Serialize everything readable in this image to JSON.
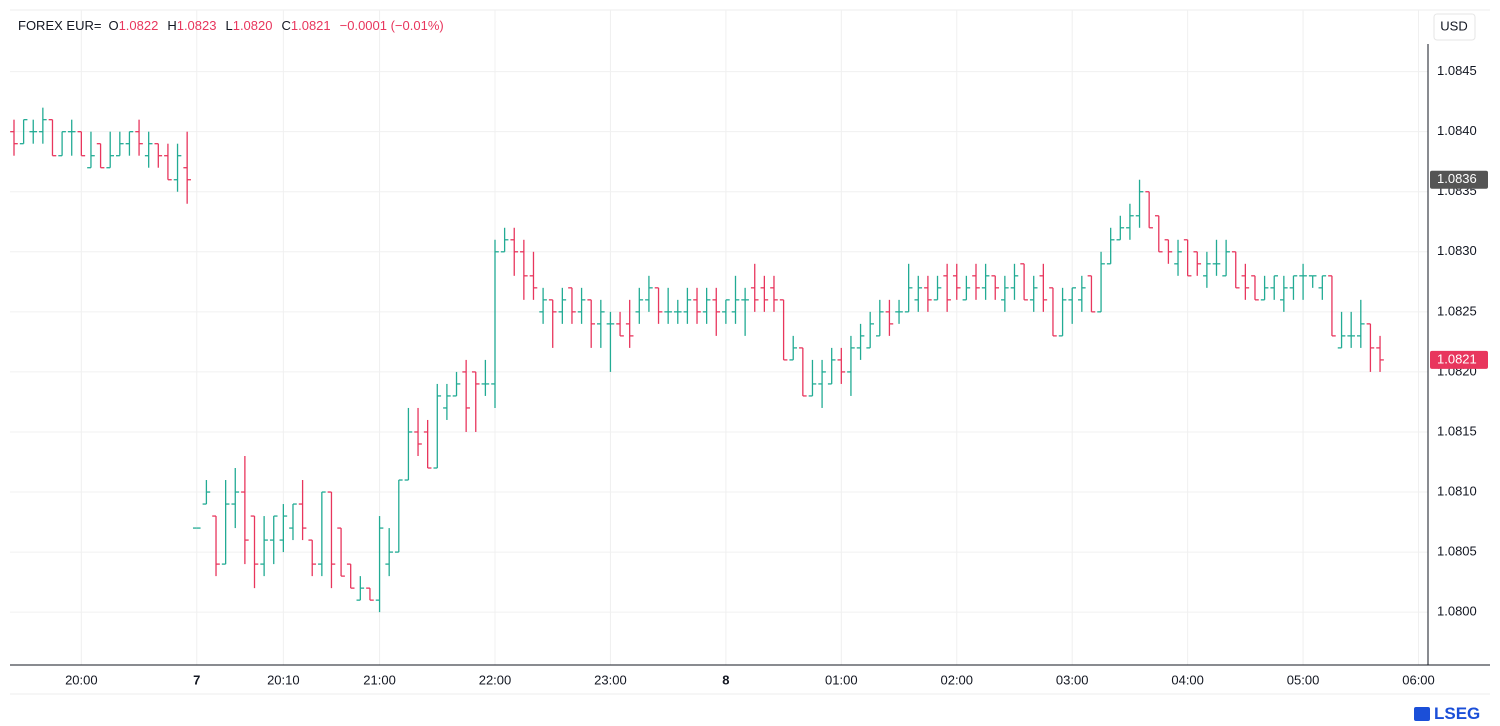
{
  "chart_data": {
    "type": "ohlc",
    "header": {
      "symbol": "FOREX EUR=",
      "fields": [
        {
          "key": "O",
          "value": "1.0822"
        },
        {
          "key": "H",
          "value": "1.0823"
        },
        {
          "key": "L",
          "value": "1.0820"
        },
        {
          "key": "C",
          "value": "1.0821"
        }
      ],
      "change": "−0.0001 (−0.01%)"
    },
    "currency": "USD",
    "source": "LSEG",
    "up_color": "#22ab94",
    "down_color": "#e8365d",
    "grid": true,
    "ylim": [
      1.07956,
      1.08473
    ],
    "yticks": [
      {
        "value": 1.08,
        "label": "1.0800"
      },
      {
        "value": 1.0805,
        "label": "1.0805"
      },
      {
        "value": 1.081,
        "label": "1.0810"
      },
      {
        "value": 1.0815,
        "label": "1.0815"
      },
      {
        "value": 1.082,
        "label": "1.0820"
      },
      {
        "value": 1.0825,
        "label": "1.0825"
      },
      {
        "value": 1.083,
        "label": "1.0830"
      },
      {
        "value": 1.0835,
        "label": "1.0835"
      },
      {
        "value": 1.084,
        "label": "1.0840"
      },
      {
        "value": 1.0845,
        "label": "1.0845"
      }
    ],
    "price_markers": [
      {
        "value": 1.0836,
        "color": "#555555"
      },
      {
        "value": 1.0821,
        "color": "#e8365d"
      }
    ],
    "categories": [
      null,
      null,
      null,
      null,
      null,
      null,
      null,
      "20:00",
      null,
      null,
      null,
      null,
      null,
      null,
      null,
      null,
      null,
      null,
      null,
      "7",
      null,
      null,
      null,
      null,
      null,
      null,
      null,
      null,
      "20:10",
      null,
      null,
      null,
      null,
      null,
      null,
      null,
      null,
      null,
      "21:00",
      null,
      null,
      null,
      null,
      null,
      null,
      null,
      null,
      null,
      null,
      null,
      "22:00",
      null,
      null,
      null,
      null,
      null,
      null,
      null,
      null,
      null,
      null,
      null,
      "23:00",
      null,
      null,
      null,
      null,
      null,
      null,
      null,
      null,
      null,
      null,
      null,
      "8",
      null,
      null,
      null,
      null,
      null,
      null,
      null,
      null,
      null,
      null,
      null,
      "01:00",
      null,
      null,
      null,
      null,
      null,
      null,
      null,
      null,
      null,
      null,
      null,
      "02:00",
      null,
      null,
      null,
      null,
      null,
      null,
      null,
      null,
      null,
      null,
      null,
      "03:00",
      null,
      null,
      null,
      null,
      null,
      null,
      null,
      null,
      null,
      null,
      null,
      "04:00",
      null,
      null,
      null,
      null,
      null,
      null,
      null,
      null,
      null,
      null,
      null,
      "05:00",
      null,
      null,
      null,
      null,
      null,
      null,
      null,
      null,
      null,
      null,
      null,
      "06:00"
    ],
    "open": [
      1.084,
      1.0839,
      1.084,
      1.084,
      1.0841,
      1.0838,
      1.084,
      1.084,
      1.0837,
      1.0839,
      1.0837,
      1.0838,
      1.0839,
      1.084,
      1.0838,
      1.0839,
      1.0838,
      1.0836,
      1.0837,
      1.0807,
      1.0809,
      1.0808,
      1.0804,
      1.0809,
      1.081,
      1.0808,
      1.0804,
      1.0806,
      1.0806,
      1.0807,
      1.0809,
      1.0806,
      1.0804,
      1.081,
      1.0807,
      1.0804,
      1.0801,
      1.0802,
      1.0801,
      1.0804,
      1.0805,
      1.0811,
      1.0815,
      1.0815,
      1.0812,
      1.0817,
      1.0818,
      1.082,
      1.082,
      1.0819,
      1.0819,
      1.083,
      1.0831,
      1.083,
      1.0828,
      1.0825,
      1.0826,
      1.0825,
      1.0827,
      1.0825,
      1.0826,
      1.0824,
      1.0824,
      1.0824,
      1.0824,
      1.0825,
      1.0826,
      1.0827,
      1.0825,
      1.0825,
      1.0825,
      1.0826,
      1.0825,
      1.0826,
      1.0825,
      1.0825,
      1.0826,
      1.0827,
      1.0827,
      1.0827,
      1.0826,
      1.0821,
      1.0822,
      1.0818,
      1.0819,
      1.0819,
      1.0821,
      1.082,
      1.0822,
      1.0822,
      1.0823,
      1.0825,
      1.0825,
      1.0825,
      1.0826,
      1.0827,
      1.0826,
      1.0828,
      1.0828,
      1.0826,
      1.0828,
      1.0827,
      1.0828,
      1.0826,
      1.0827,
      1.0829,
      1.0826,
      1.0828,
      1.0827,
      1.0823,
      1.0826,
      1.0826,
      1.0828,
      1.0825,
      1.0829,
      1.0831,
      1.0832,
      1.0833,
      1.0835,
      1.0833,
      1.0831,
      1.0829,
      1.0831,
      1.083,
      1.0828,
      1.0829,
      1.0828,
      1.083,
      1.0828,
      1.0828,
      1.0826,
      1.0827,
      1.0826,
      1.0827,
      1.0828,
      1.0828,
      1.0827,
      1.0828,
      1.0822,
      1.0823,
      1.0823,
      1.0824,
      1.0822,
      null,
      null,
      null,
      null
    ],
    "high": [
      1.0841,
      1.0841,
      1.0841,
      1.0842,
      1.0841,
      1.084,
      1.0841,
      1.084,
      1.084,
      1.0839,
      1.084,
      1.084,
      1.084,
      1.0841,
      1.084,
      1.0839,
      1.0839,
      1.0839,
      1.084,
      1.0807,
      1.0811,
      1.0808,
      1.0811,
      1.0812,
      1.0813,
      1.0808,
      1.0808,
      1.0808,
      1.0809,
      1.0809,
      1.0811,
      1.0806,
      1.081,
      1.081,
      1.0807,
      1.0804,
      1.0803,
      1.0802,
      1.0808,
      1.0807,
      1.0811,
      1.0817,
      1.0817,
      1.0816,
      1.0819,
      1.0819,
      1.082,
      1.0821,
      1.082,
      1.0821,
      1.0831,
      1.0832,
      1.0832,
      1.0831,
      1.083,
      1.0827,
      1.0826,
      1.0827,
      1.0827,
      1.0827,
      1.0826,
      1.0826,
      1.0825,
      1.0825,
      1.0826,
      1.0827,
      1.0828,
      1.0827,
      1.0827,
      1.0826,
      1.0827,
      1.0827,
      1.0827,
      1.0827,
      1.0826,
      1.0828,
      1.0827,
      1.0829,
      1.0828,
      1.0828,
      1.0826,
      1.0823,
      1.0822,
      1.0821,
      1.0821,
      1.0822,
      1.0822,
      1.0823,
      1.0824,
      1.0825,
      1.0826,
      1.0826,
      1.0826,
      1.0829,
      1.0828,
      1.0828,
      1.0828,
      1.0829,
      1.0829,
      1.0828,
      1.0829,
      1.0829,
      1.0828,
      1.0828,
      1.0829,
      1.0829,
      1.0828,
      1.0829,
      1.0827,
      1.0827,
      1.0827,
      1.0828,
      1.0828,
      1.083,
      1.0832,
      1.0833,
      1.0834,
      1.0836,
      1.0835,
      1.0833,
      1.0831,
      1.0831,
      1.0831,
      1.083,
      1.083,
      1.0831,
      1.0831,
      1.083,
      1.0829,
      1.0828,
      1.0828,
      1.0828,
      1.0828,
      1.0828,
      1.0829,
      1.0828,
      1.0828,
      1.0828,
      1.0825,
      1.0825,
      1.0826,
      1.0824,
      1.0823,
      null,
      null,
      null,
      null
    ],
    "low": [
      1.0838,
      1.0839,
      1.0839,
      1.0839,
      1.0838,
      1.0838,
      1.0838,
      1.0838,
      1.0837,
      1.0837,
      1.0837,
      1.0838,
      1.0838,
      1.0838,
      1.0837,
      1.0837,
      1.0836,
      1.0835,
      1.0834,
      1.0807,
      1.0809,
      1.0803,
      1.0804,
      1.0807,
      1.0804,
      1.0802,
      1.0803,
      1.0804,
      1.0805,
      1.0806,
      1.0806,
      1.0803,
      1.0803,
      1.0802,
      1.0803,
      1.0802,
      1.0801,
      1.0801,
      1.08,
      1.0803,
      1.0805,
      1.0811,
      1.0813,
      1.0812,
      1.0812,
      1.0816,
      1.0818,
      1.0815,
      1.0815,
      1.0818,
      1.0817,
      1.083,
      1.0828,
      1.0826,
      1.0826,
      1.0824,
      1.0822,
      1.0824,
      1.0824,
      1.0824,
      1.0822,
      1.0822,
      1.082,
      1.0823,
      1.0822,
      1.0824,
      1.0825,
      1.0824,
      1.0824,
      1.0824,
      1.0824,
      1.0824,
      1.0824,
      1.0823,
      1.0824,
      1.0824,
      1.0823,
      1.0825,
      1.0825,
      1.0825,
      1.0821,
      1.0821,
      1.0818,
      1.0818,
      1.0817,
      1.0819,
      1.0819,
      1.0818,
      1.0821,
      1.0822,
      1.0823,
      1.0823,
      1.0824,
      1.0825,
      1.0825,
      1.0825,
      1.0826,
      1.0825,
      1.0826,
      1.0826,
      1.0826,
      1.0826,
      1.0826,
      1.0825,
      1.0826,
      1.0826,
      1.0825,
      1.0825,
      1.0823,
      1.0823,
      1.0824,
      1.0825,
      1.0825,
      1.0825,
      1.0829,
      1.0831,
      1.0831,
      1.0832,
      1.0832,
      1.083,
      1.0829,
      1.0828,
      1.0828,
      1.0828,
      1.0827,
      1.0828,
      1.0828,
      1.0827,
      1.0826,
      1.0826,
      1.0826,
      1.0826,
      1.0825,
      1.0826,
      1.0826,
      1.0827,
      1.0826,
      1.0823,
      1.0822,
      1.0822,
      1.0822,
      1.082,
      1.082,
      null,
      null,
      null,
      null
    ],
    "close": [
      1.0839,
      1.0841,
      1.084,
      1.0841,
      1.0838,
      1.084,
      1.084,
      1.0838,
      1.0838,
      1.0837,
      1.0838,
      1.0839,
      1.084,
      1.0839,
      1.0839,
      1.0838,
      1.0836,
      1.0838,
      1.0836,
      1.0807,
      1.081,
      1.0804,
      1.0809,
      1.081,
      1.0806,
      1.0804,
      1.0806,
      1.0808,
      1.0808,
      1.0809,
      1.0807,
      1.0804,
      1.081,
      1.0804,
      1.0803,
      1.0802,
      1.0802,
      1.0801,
      1.0807,
      1.0805,
      1.0811,
      1.0815,
      1.0814,
      1.0812,
      1.0818,
      1.0818,
      1.0819,
      1.0817,
      1.0819,
      1.0819,
      1.083,
      1.0831,
      1.083,
      1.0828,
      1.0827,
      1.0826,
      1.0825,
      1.0826,
      1.0825,
      1.0826,
      1.0824,
      1.0825,
      1.0824,
      1.0823,
      1.0823,
      1.0826,
      1.0827,
      1.0825,
      1.0825,
      1.0825,
      1.0826,
      1.0825,
      1.0826,
      1.0825,
      1.0826,
      1.0826,
      1.0826,
      1.0826,
      1.0826,
      1.0826,
      1.0821,
      1.0822,
      1.0818,
      1.0819,
      1.082,
      1.0821,
      1.082,
      1.0822,
      1.0823,
      1.0824,
      1.0825,
      1.0824,
      1.0825,
      1.0827,
      1.0827,
      1.0826,
      1.0827,
      1.0826,
      1.0827,
      1.0827,
      1.0827,
      1.0828,
      1.0827,
      1.0827,
      1.0828,
      1.0826,
      1.0827,
      1.0826,
      1.0823,
      1.0826,
      1.0827,
      1.0827,
      1.0825,
      1.0829,
      1.0831,
      1.0832,
      1.0833,
      1.0835,
      1.0832,
      1.083,
      1.083,
      1.083,
      1.0828,
      1.0829,
      1.0829,
      1.0829,
      1.083,
      1.0827,
      1.0827,
      1.0826,
      1.0827,
      1.0828,
      1.0827,
      1.0828,
      1.0828,
      1.0828,
      1.0828,
      1.0823,
      1.0823,
      1.0823,
      1.0824,
      1.0822,
      1.0821,
      null,
      null,
      null,
      null
    ]
  }
}
